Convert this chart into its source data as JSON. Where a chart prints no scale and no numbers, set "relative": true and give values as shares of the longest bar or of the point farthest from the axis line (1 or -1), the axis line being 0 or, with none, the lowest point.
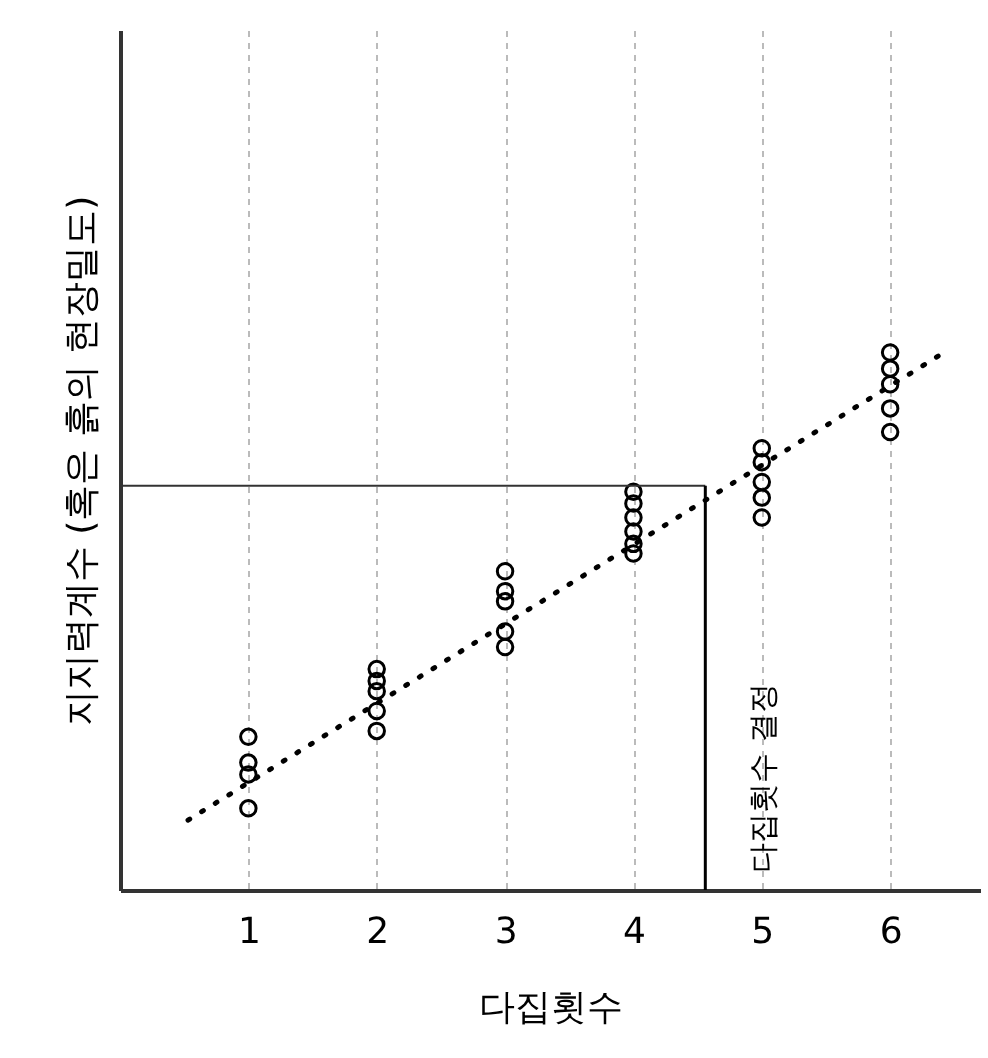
{
  "chart_data": {
    "type": "scatter",
    "relative": true,
    "xlabel": "다집횟수",
    "ylabel": "지지력계수 (혹은 흙의 현장밀도)",
    "xlim": [
      0,
      6.7
    ],
    "xticks": [
      1,
      2,
      3,
      4,
      5,
      6
    ],
    "grid": "x",
    "tick_labels": "x",
    "annotations": [
      "다집횟수 결정"
    ],
    "ref_lines": [
      {
        "axis": "y",
        "value": 0.752,
        "color": "#333333"
      },
      {
        "axis": "x",
        "value": 4.56,
        "color": "#000000"
      }
    ],
    "series": [
      {
        "color": "#000000",
        "marker": "circle",
        "x": [
          1,
          1,
          1,
          1,
          2,
          2,
          2,
          2,
          2,
          3,
          3,
          3,
          3,
          3,
          4,
          4,
          4,
          4,
          4,
          4,
          5,
          5,
          5,
          5,
          5,
          6,
          6,
          6,
          6,
          6
        ],
        "values": [
          0.285,
          0.237,
          0.215,
          0.152,
          0.411,
          0.389,
          0.37,
          0.333,
          0.296,
          0.593,
          0.556,
          0.537,
          0.481,
          0.452,
          0.741,
          0.719,
          0.693,
          0.667,
          0.644,
          0.626,
          0.822,
          0.796,
          0.759,
          0.73,
          0.693,
          1,
          0.97,
          0.941,
          0.896,
          0.852
        ]
      },
      {
        "type": "line",
        "color": "#000000",
        "line_style": "dotted",
        "x": [
          0.53,
          6.4
        ],
        "values": [
          0.13,
          0.997
        ]
      }
    ]
  }
}
